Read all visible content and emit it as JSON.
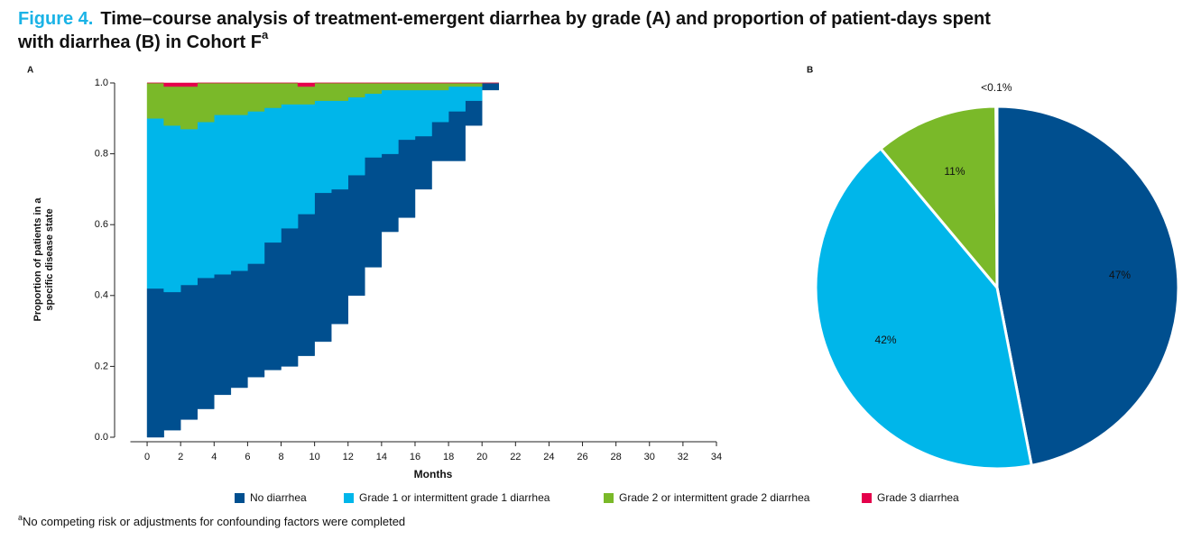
{
  "figure_label": "Figure 4.",
  "title": "Time–course analysis of treatment-emergent diarrhea by grade (A) and proportion of patient-days spent with diarrhea (B) in Cohort F",
  "title_superscript": "a",
  "footnote_marker": "a",
  "footnote": "No competing risk or adjustments for confounding factors were completed",
  "chart_data": [
    {
      "type": "area",
      "panel": "A",
      "stacked": true,
      "step": true,
      "xlabel": "Months",
      "ylabel": [
        "Proportion of patients in a",
        "specific disease state"
      ],
      "x": [
        0,
        1,
        2,
        3,
        4,
        5,
        6,
        7,
        8,
        9,
        10,
        11,
        12,
        13,
        14,
        15,
        16,
        17,
        18,
        19,
        20,
        21
      ],
      "series": [
        {
          "color": "#ffffff",
          "values": [
            0,
            0.02,
            0.05,
            0.08,
            0.12,
            0.14,
            0.17,
            0.19,
            0.2,
            0.23,
            0.27,
            0.32,
            0.4,
            0.48,
            0.58,
            0.62,
            0.7,
            0.78,
            0.78,
            0.88,
            0.98,
            0.98
          ]
        },
        {
          "name": "No diarrhea",
          "color": "#004f8f",
          "values": [
            0.42,
            0.39,
            0.38,
            0.37,
            0.34,
            0.33,
            0.32,
            0.36,
            0.39,
            0.4,
            0.42,
            0.38,
            0.34,
            0.31,
            0.22,
            0.22,
            0.15,
            0.11,
            0.14,
            0.07,
            0.02,
            0.02
          ]
        },
        {
          "name": "Grade 1 or intermittent grade 1 diarrhea",
          "color": "#00b6ea",
          "values": [
            0.48,
            0.47,
            0.44,
            0.44,
            0.45,
            0.44,
            0.43,
            0.38,
            0.35,
            0.31,
            0.26,
            0.25,
            0.22,
            0.18,
            0.18,
            0.14,
            0.13,
            0.09,
            0.07,
            0.04,
            0,
            0
          ]
        },
        {
          "name": "Grade 2 or intermittent grade 2 diarrhea",
          "color": "#7ab929",
          "values": [
            0.1,
            0.11,
            0.12,
            0.11,
            0.09,
            0.09,
            0.08,
            0.07,
            0.06,
            0.05,
            0.05,
            0.05,
            0.04,
            0.03,
            0.02,
            0.02,
            0.02,
            0.02,
            0.01,
            0.01,
            0,
            0
          ]
        },
        {
          "name": "Grade 3 diarrhea",
          "color": "#e4004b",
          "values": [
            0,
            0.01,
            0.01,
            0,
            0,
            0,
            0,
            0,
            0,
            0.01,
            0,
            0,
            0,
            0,
            0,
            0,
            0,
            0,
            0,
            0,
            0,
            0
          ]
        }
      ],
      "xlim": [
        -1,
        34
      ],
      "xticks": [
        0,
        2,
        4,
        6,
        8,
        10,
        12,
        14,
        16,
        18,
        20,
        22,
        24,
        26,
        28,
        30,
        32,
        34
      ],
      "ylim": [
        0,
        1
      ],
      "yticks": [
        {
          "value": 0,
          "label": "0.0"
        },
        {
          "value": 0.2,
          "label": "0.2"
        },
        {
          "value": 0.4,
          "label": "0.4"
        },
        {
          "value": 0.6,
          "label": "0.6"
        },
        {
          "value": 0.8,
          "label": "0.8"
        },
        {
          "value": 1,
          "label": "1.0"
        }
      ]
    },
    {
      "type": "pie",
      "panel": "B",
      "values": [
        47,
        42,
        11,
        0.1
      ],
      "value_labels": [
        "47%",
        "42%",
        "11%",
        "<0.1%"
      ],
      "colors": [
        "#004f8f",
        "#00b6ea",
        "#7ab929",
        "#e4004b"
      ]
    }
  ]
}
